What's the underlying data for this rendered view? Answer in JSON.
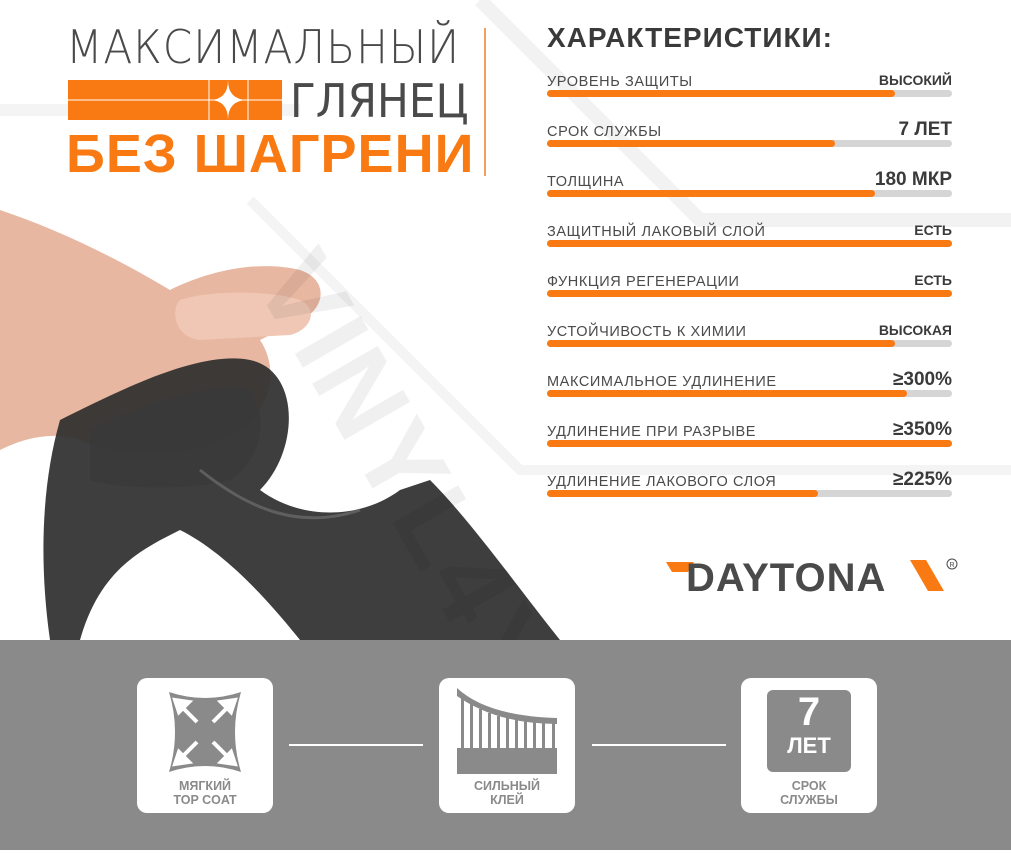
{
  "headline": {
    "line1": "МАКСИМАЛЬНЫЙ",
    "line2": "ГЛЯНЕЦ",
    "line3": "БЕЗ ШАГРЕНИ"
  },
  "characteristics": {
    "title": "ХАРАКТЕРИСТИКИ:",
    "items": [
      {
        "label": "УРОВЕНЬ ЗАЩИТЫ",
        "value": "ВЫСОКИЙ",
        "level": 0.86
      },
      {
        "label": "СРОК СЛУЖБЫ",
        "value": "7 ЛЕТ",
        "level": 0.71
      },
      {
        "label": "ТОЛЩИНА",
        "value": "180 МКР",
        "level": 0.81
      },
      {
        "label": "ЗАЩИТНЫЙ ЛАКОВЫЙ СЛОЙ",
        "value": "ЕСТЬ",
        "level": 1.0
      },
      {
        "label": "ФУНКЦИЯ РЕГЕНЕРАЦИИ",
        "value": "ЕСТЬ",
        "level": 1.0
      },
      {
        "label": "УСТОЙЧИВОСТЬ К ХИМИИ",
        "value": "ВЫСОКАЯ",
        "level": 0.86
      },
      {
        "label": "МАКСИМАЛЬНОЕ УДЛИНЕНИЕ",
        "value": "≥300%",
        "level": 0.89
      },
      {
        "label": "УДЛИНЕНИЕ ПРИ РАЗРЫВЕ",
        "value": "≥350%",
        "level": 1.0
      },
      {
        "label": "УДЛИНЕНИЕ ЛАКОВОГО СЛОЯ",
        "value": "≥225%",
        "level": 0.67
      }
    ]
  },
  "brand": {
    "name": "DAYTONA",
    "registered": "®"
  },
  "watermark": "VINYL4YOU",
  "features": [
    {
      "icon": "stretch-arrows-icon",
      "line1": "МЯГКИЙ",
      "line2": "TOP COAT"
    },
    {
      "icon": "adhesive-icon",
      "line1": "СИЛЬНЫЙ",
      "line2": "КЛЕЙ"
    },
    {
      "icon": "seven-years-icon",
      "badge_number": "7",
      "badge_unit": "ЛЕТ",
      "line1": "СРОК",
      "line2": "СЛУЖБЫ"
    }
  ],
  "colors": {
    "accent": "#f97a12",
    "text": "#4a4a4a",
    "band": "#8a8a8a",
    "track": "#d5d5d5"
  }
}
